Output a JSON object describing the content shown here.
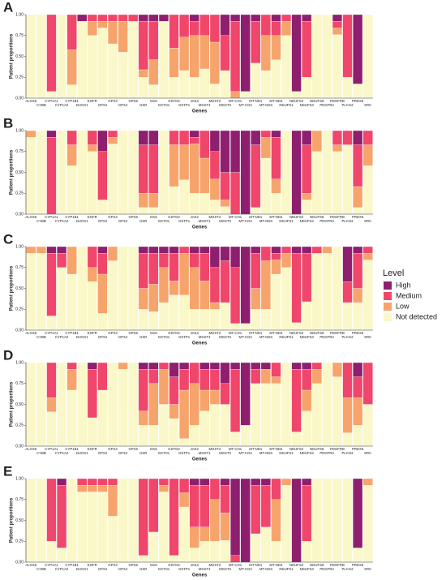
{
  "legend_title": "Level",
  "chart_data": [
    {
      "type": "bar",
      "stacked": true,
      "title": "A",
      "ylabel": "Patient proportions",
      "xlabel": "Genes",
      "ylim": [
        0,
        1
      ],
      "yticks": [
        {
          "value": 0,
          "label": "0.00"
        },
        {
          "value": 0.25,
          "label": "0.25"
        },
        {
          "value": 0.5,
          "label": "0.50"
        },
        {
          "value": 0.75,
          "label": "0.75"
        },
        {
          "value": 1,
          "label": "1.00"
        }
      ],
      "categories": [
        "ALOX5",
        "CYBB",
        "CYP1A1",
        "CYP1A2",
        "CYP1B1",
        "DUOX1",
        "EGFR",
        "GPX2",
        "GPX3",
        "GPX4",
        "GPX6",
        "GSR",
        "GSS",
        "GSTO1",
        "GSTO2",
        "GSTP1",
        "JAK2",
        "MGST1",
        "MGST2",
        "MGST3",
        "MT-CO1",
        "MT-CO2",
        "MT-ND1",
        "MT-ND3",
        "MT-ND4",
        "NDUFS1",
        "NDUFS2",
        "NDUFS3",
        "NDUFS8",
        "PDGFRA",
        "PDGFRB",
        "PLCG2",
        "PRDX6",
        "SRC"
      ],
      "series": [
        {
          "name": "High",
          "color": "#8e1f6e",
          "values": [
            0,
            0,
            0,
            0,
            0,
            0.08,
            0,
            0,
            0,
            0,
            0,
            0.08,
            0.08,
            0.08,
            0,
            0,
            0.08,
            0,
            0,
            0.25,
            0.08,
            0.92,
            0.08,
            0,
            0.08,
            0,
            0.92,
            0.08,
            0,
            0,
            0.08,
            0,
            0.83,
            0
          ]
        },
        {
          "name": "Medium",
          "color": "#f0466b",
          "values": [
            0,
            0,
            0.92,
            0,
            0.42,
            0,
            0.08,
            0.08,
            0.08,
            0.08,
            0.08,
            0.58,
            0.46,
            0,
            0.4,
            0.27,
            0.17,
            0.25,
            0.33,
            0.42,
            0.84,
            0,
            0.5,
            0.25,
            0.17,
            0.08,
            0,
            0.67,
            0,
            0,
            0.08,
            0.75,
            0,
            0
          ]
        },
        {
          "name": "Low",
          "color": "#f6a46c",
          "values": [
            0,
            0,
            0,
            0,
            0.42,
            0,
            0.17,
            0.08,
            0.27,
            0.37,
            0,
            0.09,
            0.3,
            0,
            0.35,
            0.4,
            0.5,
            0.4,
            0.5,
            0,
            0.08,
            0,
            0,
            0.42,
            0.29,
            0.17,
            0,
            0,
            0,
            0,
            0.08,
            0,
            0,
            0
          ]
        },
        {
          "name": "Not detected",
          "color": "#faf8c9",
          "values": [
            1,
            1,
            0.08,
            1,
            0.16,
            0.92,
            0.75,
            0.84,
            0.65,
            0.55,
            0.92,
            0.25,
            0.16,
            0.92,
            0.25,
            0.33,
            0.25,
            0.35,
            0.17,
            0.33,
            0,
            0.08,
            0.42,
            0.33,
            0.46,
            0.75,
            0.08,
            0.25,
            1,
            1,
            0.76,
            0.25,
            0.17,
            1
          ]
        }
      ]
    },
    {
      "type": "bar",
      "stacked": true,
      "title": "B",
      "ylabel": "Patient proportions",
      "xlabel": "Genes",
      "ylim": [
        0,
        1
      ],
      "yticks": [
        {
          "value": 0,
          "label": "0.00"
        },
        {
          "value": 0.25,
          "label": "0.25"
        },
        {
          "value": 0.5,
          "label": "0.50"
        },
        {
          "value": 0.75,
          "label": "0.75"
        },
        {
          "value": 1,
          "label": "1.00"
        }
      ],
      "categories": [
        "ALOX5",
        "CYBB",
        "CYP1A1",
        "CYP1A2",
        "CYP1B1",
        "DUOX1",
        "EGFR",
        "GPX2",
        "GPX3",
        "GPX4",
        "GPX6",
        "GSR",
        "GSS",
        "GSTO1",
        "GSTO2",
        "GSTP1",
        "JAK2",
        "MGST1",
        "MGST2",
        "MGST3",
        "MT-CO1",
        "MT-CO2",
        "MT-ND1",
        "MT-ND3",
        "MT-ND4",
        "NDUFS1",
        "NDUFS2",
        "NDUFS3",
        "NDUFS8",
        "PDGFRA",
        "PDGFRB",
        "PLCG2",
        "PRDX6",
        "SRC"
      ],
      "series": [
        {
          "name": "High",
          "color": "#8e1f6e",
          "values": [
            0,
            0,
            0.08,
            0,
            0,
            0,
            0,
            0.25,
            0,
            0,
            0,
            0.17,
            0.17,
            0,
            0,
            0,
            0.08,
            0,
            0.25,
            0.5,
            0.5,
            1,
            0.17,
            0,
            0.08,
            0,
            1,
            0.17,
            0,
            0,
            0,
            0,
            0.17,
            0
          ]
        },
        {
          "name": "Medium",
          "color": "#f0466b",
          "values": [
            0,
            0,
            0.92,
            0,
            0.17,
            0,
            0.17,
            0.58,
            0.08,
            0,
            0,
            0.58,
            0.58,
            0,
            0.17,
            0.17,
            0.08,
            0.33,
            0.33,
            0.33,
            0.5,
            0,
            0.75,
            0.08,
            0.5,
            0,
            0,
            0.58,
            0,
            0,
            0.17,
            0.17,
            0.5,
            0.17
          ]
        },
        {
          "name": "Low",
          "color": "#f6a46c",
          "values": [
            0.08,
            0,
            0,
            0,
            0.25,
            0,
            0.08,
            0,
            0.08,
            0,
            0,
            0.17,
            0.17,
            0,
            0.5,
            0.42,
            0.59,
            0.42,
            0.25,
            0.08,
            0,
            0,
            0,
            0.25,
            0.17,
            0,
            0,
            0.08,
            0.25,
            0,
            0.08,
            0,
            0.25,
            0.25
          ]
        },
        {
          "name": "Not detected",
          "color": "#faf8c9",
          "values": [
            0.92,
            1,
            0,
            1,
            0.58,
            1,
            0.75,
            0.17,
            0.84,
            1,
            1,
            0.08,
            0.08,
            1,
            0.33,
            0.41,
            0.25,
            0.25,
            0.17,
            0.09,
            0,
            0,
            0.08,
            0.67,
            0.25,
            1,
            0,
            0.17,
            0.75,
            1,
            0.75,
            0.83,
            0.08,
            0.58
          ]
        }
      ]
    },
    {
      "type": "bar",
      "stacked": true,
      "title": "C",
      "ylabel": "Patient proportions",
      "xlabel": "Genes",
      "ylim": [
        0,
        1
      ],
      "yticks": [
        {
          "value": 0,
          "label": "0.00"
        },
        {
          "value": 0.25,
          "label": "0.25"
        },
        {
          "value": 0.5,
          "label": "0.50"
        },
        {
          "value": 0.75,
          "label": "0.75"
        },
        {
          "value": 1,
          "label": "1.00"
        }
      ],
      "categories": [
        "ALOX5",
        "CYBB",
        "CYP1A1",
        "CYP1A2",
        "CYP1B1",
        "DUOX1",
        "EGFR",
        "GPX2",
        "GPX3",
        "GPX4",
        "GPX6",
        "GSR",
        "GSS",
        "GSTO1",
        "GSTO2",
        "GSTP1",
        "JAK2",
        "MGST1",
        "MGST2",
        "MGST3",
        "MT-CO1",
        "MT-CO2",
        "MT-ND1",
        "MT-ND3",
        "MT-ND4",
        "NDUFS1",
        "NDUFS2",
        "NDUFS3",
        "NDUFS8",
        "PDGFRA",
        "PDGFRB",
        "PLCG2",
        "PRDX6",
        "SRC"
      ],
      "series": [
        {
          "name": "High",
          "color": "#8e1f6e",
          "values": [
            0,
            0,
            0.08,
            0.08,
            0,
            0,
            0,
            0.08,
            0,
            0,
            0,
            0.08,
            0.08,
            0.08,
            0.08,
            0,
            0.08,
            0.08,
            0.25,
            0.17,
            0.25,
            0.92,
            0.08,
            0,
            0.08,
            0,
            0.08,
            0.08,
            0,
            0,
            0,
            0.42,
            0.08,
            0
          ]
        },
        {
          "name": "Medium",
          "color": "#f0466b",
          "values": [
            0,
            0,
            0.75,
            0.17,
            0,
            0,
            0.25,
            0.25,
            0,
            0,
            0,
            0.42,
            0.37,
            0.17,
            0.33,
            0.08,
            0.17,
            0.33,
            0.42,
            0.5,
            0.67,
            0,
            0.42,
            0.17,
            0.08,
            0.08,
            0.83,
            0.58,
            0.08,
            0,
            0,
            0.25,
            0.42,
            0.08
          ]
        },
        {
          "name": "Low",
          "color": "#f6a46c",
          "values": [
            0.08,
            0.08,
            0,
            0,
            0.33,
            0,
            0.17,
            0.47,
            0.17,
            0,
            0,
            0.25,
            0.33,
            0.42,
            0.17,
            0.5,
            0.5,
            0.34,
            0.08,
            0,
            0,
            0,
            0.25,
            0.58,
            0.17,
            0.17,
            0,
            0,
            0,
            0.08,
            0,
            0,
            0.17,
            0.08
          ]
        },
        {
          "name": "Not detected",
          "color": "#faf8c9",
          "values": [
            0.92,
            0.92,
            0.17,
            0.75,
            0.67,
            1,
            0.58,
            0.2,
            0.83,
            1,
            1,
            0.25,
            0.22,
            0.33,
            0.42,
            0.42,
            0.25,
            0.25,
            0.25,
            0.33,
            0.08,
            0.08,
            0.25,
            0.25,
            0.67,
            0.75,
            0.09,
            0.34,
            0.92,
            0.92,
            1,
            0.33,
            0.33,
            0.84
          ]
        }
      ]
    },
    {
      "type": "bar",
      "stacked": true,
      "title": "D",
      "ylabel": "Patient proportions",
      "xlabel": "Genes",
      "ylim": [
        0,
        1
      ],
      "yticks": [
        {
          "value": 0,
          "label": "0.00"
        },
        {
          "value": 0.25,
          "label": "0.25"
        },
        {
          "value": 0.5,
          "label": "0.50"
        },
        {
          "value": 0.75,
          "label": "0.75"
        },
        {
          "value": 1,
          "label": "1.00"
        }
      ],
      "categories": [
        "ALOX5",
        "CYBB",
        "CYP1A1",
        "CYP1A2",
        "CYP1B1",
        "DUOX1",
        "EGFR",
        "GPX2",
        "GPX3",
        "GPX4",
        "GPX6",
        "GSR",
        "GSS",
        "GSTO1",
        "GSTO2",
        "GSTP1",
        "JAK2",
        "MGST1",
        "MGST2",
        "MGST3",
        "MT-CO1",
        "MT-CO2",
        "MT-ND1",
        "MT-ND3",
        "MT-ND4",
        "NDUFS1",
        "NDUFS2",
        "NDUFS3",
        "NDUFS8",
        "PDGFRA",
        "PDGFRB",
        "PLCG2",
        "PRDX6",
        "SRC"
      ],
      "series": [
        {
          "name": "High",
          "color": "#8e1f6e",
          "values": [
            0,
            0,
            0,
            0,
            0,
            0,
            0.08,
            0,
            0,
            0,
            0,
            0.08,
            0.08,
            0,
            0.17,
            0.08,
            0,
            0.08,
            0.08,
            0.25,
            0.08,
            0.75,
            0.08,
            0.08,
            0,
            0,
            0.08,
            0.08,
            0,
            0,
            0,
            0,
            0.17,
            0
          ]
        },
        {
          "name": "Medium",
          "color": "#f0466b",
          "values": [
            0,
            0,
            0.42,
            0,
            0.08,
            0,
            0.58,
            0.33,
            0,
            0,
            0,
            0.5,
            0.17,
            0.08,
            0.33,
            0.25,
            0.25,
            0.25,
            0.25,
            0.25,
            0.75,
            0,
            0.17,
            0,
            0.17,
            0,
            0.75,
            0.25,
            0.08,
            0,
            0,
            0.42,
            0.25,
            0.5
          ]
        },
        {
          "name": "Low",
          "color": "#f6a46c",
          "values": [
            0,
            0,
            0.17,
            0,
            0.25,
            0,
            0,
            0,
            0,
            0.08,
            0,
            0.17,
            0.5,
            0.42,
            0.17,
            0.58,
            0.5,
            0.25,
            0.17,
            0,
            0,
            0,
            0,
            0.17,
            0.08,
            0,
            0,
            0.25,
            0.17,
            0,
            0.17,
            0.42,
            0.33,
            0
          ]
        },
        {
          "name": "Not detected",
          "color": "#faf8c9",
          "values": [
            1,
            1,
            0.41,
            1,
            0.67,
            1,
            0.34,
            0.67,
            1,
            0.92,
            1,
            0.25,
            0.25,
            0.5,
            0.33,
            0.09,
            0.25,
            0.42,
            0.5,
            0.5,
            0.17,
            0.25,
            0.75,
            0.75,
            0.75,
            1,
            0.17,
            0.42,
            0.75,
            1,
            0.83,
            0.16,
            0.25,
            0.5
          ]
        }
      ]
    },
    {
      "type": "bar",
      "stacked": true,
      "title": "E",
      "ylabel": "Patient proportions",
      "xlabel": "Genes",
      "ylim": [
        0,
        1
      ],
      "yticks": [
        {
          "value": 0,
          "label": "0.00"
        },
        {
          "value": 0.25,
          "label": "0.25"
        },
        {
          "value": 0.5,
          "label": "0.50"
        },
        {
          "value": 0.75,
          "label": "0.75"
        },
        {
          "value": 1,
          "label": "1.00"
        }
      ],
      "categories": [
        "ALOX5",
        "CYBB",
        "CYP1A1",
        "CYP1A2",
        "CYP1B1",
        "DUOX1",
        "EGFR",
        "GPX2",
        "GPX3",
        "GPX4",
        "GPX6",
        "GSR",
        "GSS",
        "GSTO1",
        "GSTO2",
        "GSTP1",
        "JAK2",
        "MGST1",
        "MGST2",
        "MGST3",
        "MT-CO1",
        "MT-CO2",
        "MT-ND1",
        "MT-ND3",
        "MT-ND4",
        "NDUFS1",
        "NDUFS2",
        "NDUFS3",
        "NDUFS8",
        "PDGFRA",
        "PDGFRB",
        "PLCG2",
        "PRDX6",
        "SRC"
      ],
      "series": [
        {
          "name": "High",
          "color": "#8e1f6e",
          "values": [
            0,
            0,
            0,
            0.08,
            0,
            0,
            0,
            0,
            0,
            0,
            0,
            0,
            0,
            0,
            0,
            0,
            0.08,
            0.08,
            0,
            0.08,
            0.92,
            1,
            0.08,
            0.08,
            0,
            0,
            1,
            0.08,
            0,
            0,
            0,
            0,
            0.83,
            0
          ]
        },
        {
          "name": "Medium",
          "color": "#f0466b",
          "values": [
            0,
            0,
            0.75,
            0.75,
            0,
            0.08,
            0.08,
            0.08,
            0.08,
            0,
            0,
            0.92,
            0.64,
            0.08,
            0.92,
            0.17,
            0.5,
            0.5,
            0.25,
            0.33,
            0.08,
            0,
            0.58,
            0.5,
            0.25,
            0,
            0,
            0.67,
            0,
            0,
            0,
            0,
            0,
            0
          ]
        },
        {
          "name": "Low",
          "color": "#f6a46c",
          "values": [
            0,
            0,
            0,
            0,
            0,
            0.08,
            0.08,
            0.08,
            0.37,
            0,
            0,
            0,
            0,
            0.08,
            0,
            0.17,
            0.25,
            0.17,
            0.5,
            0.33,
            0,
            0,
            0,
            0,
            0.5,
            0.08,
            0,
            0,
            0,
            0,
            0,
            0,
            0,
            0.08
          ]
        },
        {
          "name": "Not detected",
          "color": "#faf8c9",
          "values": [
            1,
            1,
            0.25,
            0.17,
            1,
            0.84,
            0.84,
            0.84,
            0.55,
            1,
            1,
            0.08,
            0.36,
            0.84,
            0.08,
            0.66,
            0.17,
            0.25,
            0.25,
            0.26,
            0,
            0,
            0.34,
            0.42,
            0.25,
            0.92,
            0,
            0.25,
            1,
            1,
            1,
            1,
            0.17,
            0.92
          ]
        }
      ]
    }
  ]
}
